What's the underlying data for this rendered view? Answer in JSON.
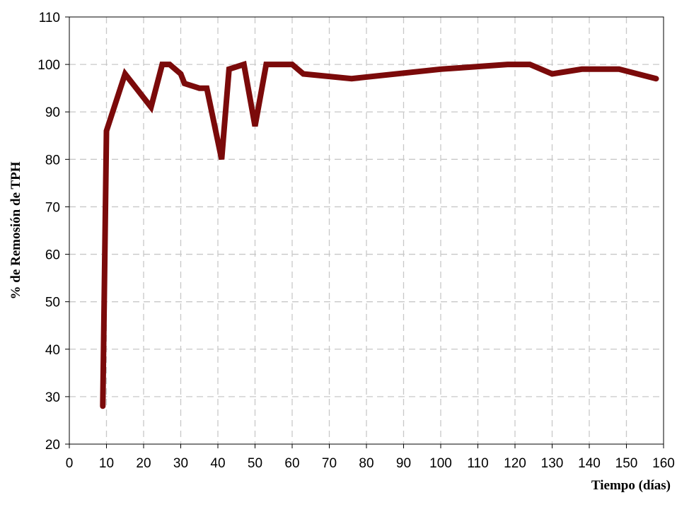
{
  "chart_data": {
    "type": "line",
    "title": "",
    "xlabel": "Tiempo (días)",
    "ylabel": "% de Remosión de TPH",
    "xlim": [
      0,
      160
    ],
    "ylim": [
      20,
      110
    ],
    "x_ticks": [
      0,
      10,
      20,
      30,
      40,
      50,
      60,
      70,
      80,
      90,
      100,
      110,
      120,
      130,
      140,
      150,
      160
    ],
    "y_ticks": [
      20,
      30,
      40,
      50,
      60,
      70,
      80,
      90,
      100,
      110
    ],
    "grid": true,
    "legend": false,
    "series": [
      {
        "color": "#7b0a0a",
        "points": [
          {
            "x": 9,
            "y": 28
          },
          {
            "x": 10,
            "y": 86
          },
          {
            "x": 15,
            "y": 98
          },
          {
            "x": 22,
            "y": 91
          },
          {
            "x": 25,
            "y": 100
          },
          {
            "x": 27,
            "y": 100
          },
          {
            "x": 30,
            "y": 98
          },
          {
            "x": 31,
            "y": 96
          },
          {
            "x": 35,
            "y": 95
          },
          {
            "x": 37,
            "y": 95
          },
          {
            "x": 41,
            "y": 80
          },
          {
            "x": 43,
            "y": 99
          },
          {
            "x": 47,
            "y": 100
          },
          {
            "x": 50,
            "y": 87
          },
          {
            "x": 53,
            "y": 100
          },
          {
            "x": 60,
            "y": 100
          },
          {
            "x": 63,
            "y": 98
          },
          {
            "x": 76,
            "y": 97
          },
          {
            "x": 100,
            "y": 99
          },
          {
            "x": 118,
            "y": 100
          },
          {
            "x": 124,
            "y": 100
          },
          {
            "x": 130,
            "y": 98
          },
          {
            "x": 138,
            "y": 99
          },
          {
            "x": 148,
            "y": 99
          },
          {
            "x": 158,
            "y": 97
          }
        ]
      }
    ]
  }
}
